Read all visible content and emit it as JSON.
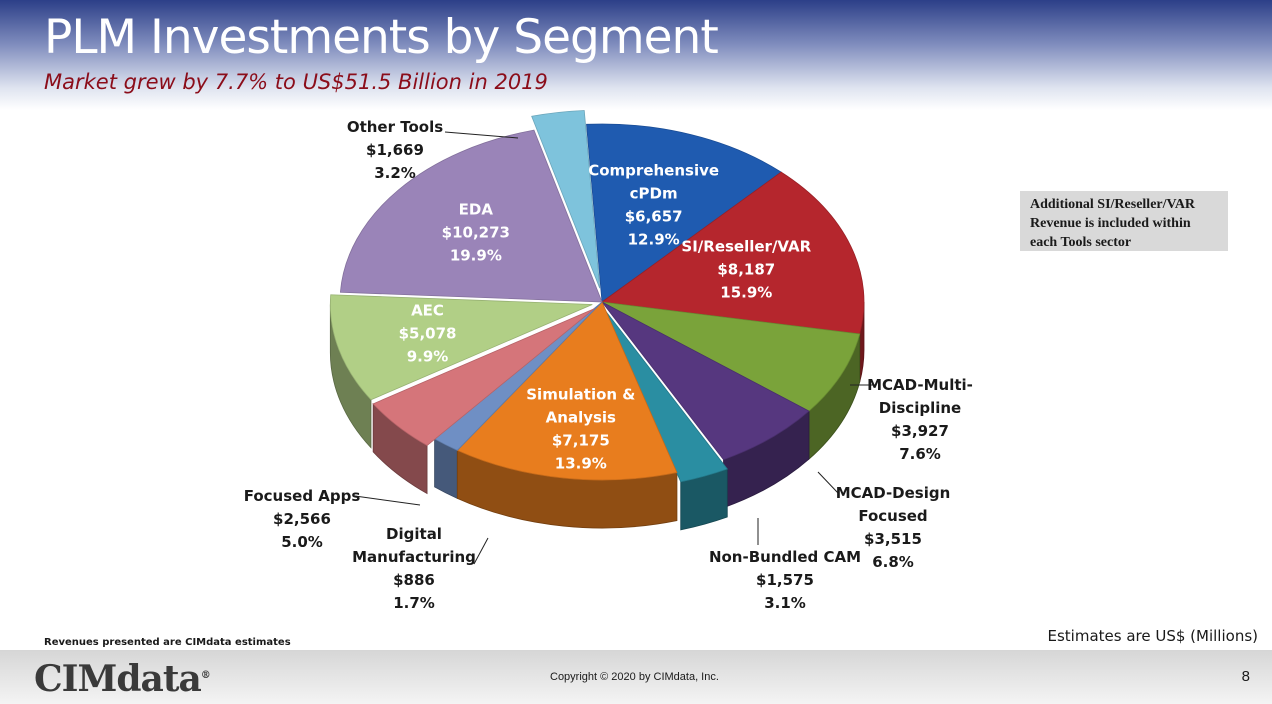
{
  "slide": {
    "title": "PLM Investments by Segment",
    "subtitle": "Market grew by 7.7% to US$51.5 Billion in 2019",
    "note": "Additional SI/Reseller/VAR Revenue is included within each Tools sector",
    "estimates_note": "Estimates are US$ (Millions)",
    "revenue_note": "Revenues presented are CIMdata estimates",
    "logo_text": "CIMdata",
    "logo_mark": "®",
    "copyright": "Copyright © 2020 by CIMdata, Inc.",
    "page_number": "8"
  },
  "chart_data": {
    "type": "pie",
    "title": "",
    "style": "3d-exploded",
    "slices": [
      {
        "name": "Comprehensive cPDm",
        "value": 6657,
        "value_label": "$6,657",
        "percent": "12.9%",
        "color": "#1f5bb0"
      },
      {
        "name": "SI/Reseller/VAR",
        "value": 8187,
        "value_label": "$8,187",
        "percent": "15.9%",
        "color": "#b5262d"
      },
      {
        "name": "MCAD-Multi-Discipline",
        "value": 3927,
        "value_label": "$3,927",
        "percent": "7.6%",
        "color": "#7aa33a"
      },
      {
        "name": "MCAD-Design Focused",
        "value": 3515,
        "value_label": "$3,515",
        "percent": "6.8%",
        "color": "#56377f"
      },
      {
        "name": "Non-Bundled CAM",
        "value": 1575,
        "value_label": "$1,575",
        "percent": "3.1%",
        "color": "#2a8ea2"
      },
      {
        "name": "Simulation & Analysis",
        "value": 7175,
        "value_label": "$7,175",
        "percent": "13.9%",
        "color": "#e87d1e"
      },
      {
        "name": "Digital Manufacturing",
        "value": 886,
        "value_label": "$886",
        "percent": "1.7%",
        "color": "#6f8fc4"
      },
      {
        "name": "Focused Apps",
        "value": 2566,
        "value_label": "$2,566",
        "percent": "5.0%",
        "color": "#d5757a"
      },
      {
        "name": "AEC",
        "value": 5078,
        "value_label": "$5,078",
        "percent": "9.9%",
        "color": "#b1cf86"
      },
      {
        "name": "EDA",
        "value": 10273,
        "value_label": "$10,273",
        "percent": "19.9%",
        "color": "#9a84b8"
      },
      {
        "name": "Other Tools",
        "value": 1669,
        "value_label": "$1,669",
        "percent": "3.2%",
        "color": "#7ec3dc"
      }
    ]
  }
}
